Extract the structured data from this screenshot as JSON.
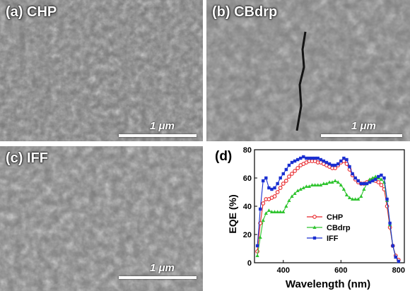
{
  "panels": {
    "a": {
      "label": "(a) CHP",
      "scale": "1 μm"
    },
    "b": {
      "label": "(b) CBdrp",
      "scale": "1 μm"
    },
    "c": {
      "label": "(c) IFF",
      "scale": "1 μm"
    },
    "d": {
      "label": "(d)"
    }
  },
  "chart_data": {
    "type": "line",
    "title": "",
    "xlabel": "Wavelength (nm)",
    "ylabel": "EQE (%)",
    "xlim": [
      300,
      820
    ],
    "ylim": [
      0,
      80
    ],
    "xticks": [
      400,
      600,
      800
    ],
    "yticks": [
      0,
      20,
      40,
      60,
      80
    ],
    "grid": false,
    "legend_position": "bottom-right",
    "x": [
      310,
      320,
      330,
      340,
      350,
      360,
      370,
      380,
      390,
      400,
      410,
      420,
      430,
      440,
      450,
      460,
      470,
      480,
      490,
      500,
      510,
      520,
      530,
      540,
      550,
      560,
      570,
      580,
      590,
      600,
      610,
      620,
      630,
      640,
      650,
      660,
      670,
      680,
      690,
      700,
      710,
      720,
      730,
      740,
      750,
      760,
      770,
      780,
      790,
      800
    ],
    "series": [
      {
        "name": "CHP",
        "color": "#e8262a",
        "marker": "circle",
        "values": [
          8,
          28,
          42,
          45,
          45,
          46,
          47,
          50,
          53,
          56,
          58,
          61,
          63,
          65,
          67,
          69,
          70,
          71,
          72,
          72,
          72,
          71,
          71,
          70,
          69,
          68,
          67,
          67,
          69,
          71,
          72,
          70,
          66,
          62,
          59,
          57,
          56,
          56,
          57,
          58,
          59,
          58,
          57,
          55,
          52,
          40,
          25,
          12,
          5,
          2
        ]
      },
      {
        "name": "CBdrp",
        "color": "#2fc42f",
        "marker": "triangle",
        "values": [
          5,
          18,
          30,
          35,
          37,
          36,
          36,
          36,
          36,
          36,
          40,
          44,
          47,
          49,
          51,
          52,
          53,
          54,
          54,
          55,
          55,
          55,
          55,
          56,
          56,
          57,
          57,
          58,
          57,
          55,
          52,
          48,
          46,
          45,
          45,
          45,
          47,
          52,
          56,
          59,
          60,
          61,
          60,
          59,
          57,
          44,
          27,
          12,
          4,
          1
        ]
      },
      {
        "name": "IFF",
        "color": "#1a2fd1",
        "marker": "square",
        "values": [
          12,
          38,
          58,
          60,
          53,
          52,
          53,
          56,
          60,
          63,
          66,
          69,
          71,
          72,
          73,
          74,
          75,
          74,
          74,
          74,
          74,
          74,
          73,
          72,
          71,
          70,
          69,
          69,
          70,
          72,
          74,
          73,
          68,
          63,
          60,
          58,
          56,
          56,
          56,
          57,
          58,
          59,
          61,
          62,
          60,
          45,
          28,
          12,
          4,
          1
        ]
      }
    ]
  }
}
